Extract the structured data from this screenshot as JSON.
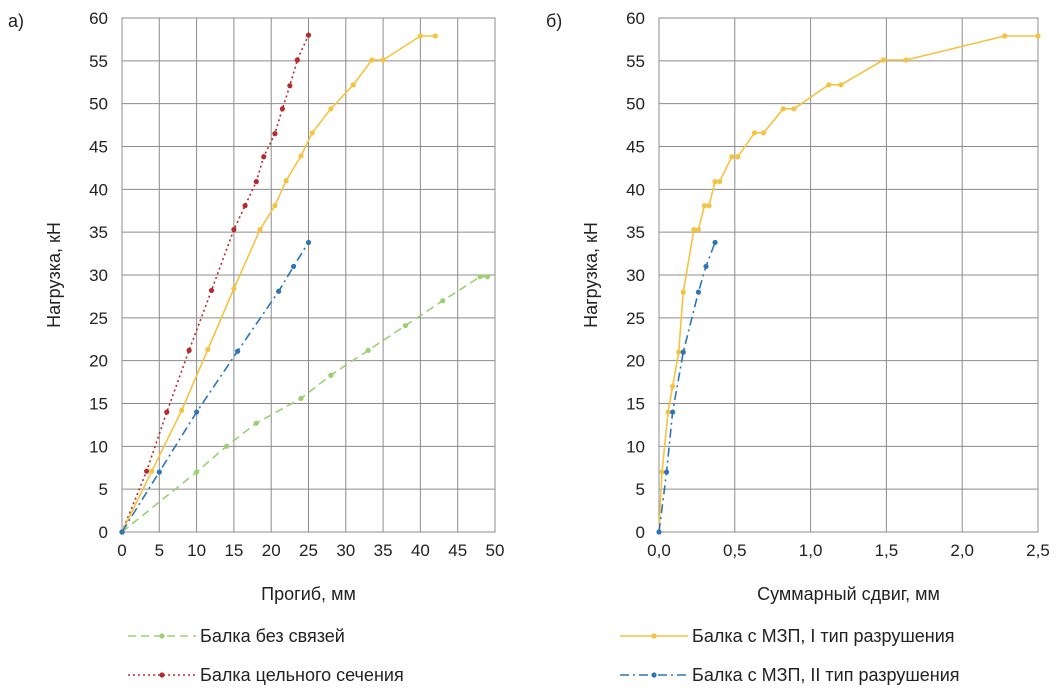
{
  "chart_data": [
    {
      "type": "line",
      "panel_label": "а)",
      "xlabel": "Прогиб, мм",
      "ylabel": "Нагрузка, кН",
      "xlim": [
        0,
        50
      ],
      "ylim": [
        0,
        60
      ],
      "x_ticks": [
        "0",
        "5",
        "10",
        "15",
        "20",
        "25",
        "30",
        "35",
        "40",
        "45",
        "50"
      ],
      "y_ticks": [
        "0",
        "5",
        "10",
        "15",
        "20",
        "25",
        "30",
        "35",
        "40",
        "45",
        "50",
        "55",
        "60"
      ],
      "grid": true,
      "legend_position": "bottom",
      "series": [
        {
          "name": "Балка без связей",
          "color": "#9bd071",
          "dash": "dash",
          "x": [
            0,
            10,
            14,
            18,
            24,
            28,
            33,
            38,
            43,
            48,
            49
          ],
          "y": [
            0,
            7,
            10,
            12.7,
            15.6,
            18.3,
            21.2,
            24.1,
            27,
            29.8,
            29.8
          ]
        },
        {
          "name": "Балка цельного сечения",
          "color": "#b52a2d",
          "dash": "dot",
          "x": [
            0,
            3.3,
            6,
            9,
            12,
            15,
            16.5,
            18,
            19,
            20.5,
            21.5,
            22.5,
            23.5,
            25
          ],
          "y": [
            0,
            7.1,
            14,
            21.2,
            28.2,
            35.3,
            38.1,
            40.9,
            43.8,
            46.5,
            49.4,
            52.1,
            55.1,
            58
          ]
        },
        {
          "name": "Балка с МЗП, I тип разрушения",
          "color": "#f5c242",
          "dash": "solid",
          "x": [
            0,
            4,
            8,
            11.5,
            15,
            18.5,
            20.5,
            22,
            24,
            25.5,
            28,
            31,
            33.5,
            35,
            40,
            42
          ],
          "y": [
            0,
            7.1,
            14.2,
            21.3,
            28.4,
            35.3,
            38.1,
            41,
            43.9,
            46.6,
            49.4,
            52.2,
            55.1,
            55.1,
            57.9,
            57.9
          ]
        },
        {
          "name": "Балка с МЗП, II тип разрушения",
          "color": "#2e75b6",
          "dash": "dashdot",
          "x": [
            0,
            5,
            10,
            15.5,
            21,
            23,
            25
          ],
          "y": [
            0,
            7,
            14,
            21.1,
            28.1,
            31,
            33.8
          ]
        }
      ]
    },
    {
      "type": "line",
      "panel_label": "б)",
      "xlabel": "Суммарный сдвиг, мм",
      "ylabel": "Нагрузка, кН",
      "xlim": [
        0,
        2.5
      ],
      "ylim": [
        0,
        60
      ],
      "x_ticks": [
        "0,0",
        "0,5",
        "1,0",
        "1,5",
        "2,0",
        "2,5"
      ],
      "y_ticks": [
        "0",
        "5",
        "10",
        "15",
        "20",
        "25",
        "30",
        "35",
        "40",
        "45",
        "50",
        "55",
        "60"
      ],
      "grid": true,
      "legend_position": "bottom",
      "series": [
        {
          "name": "Балка с МЗП, I тип разрушения",
          "color": "#f5c242",
          "dash": "solid",
          "x": [
            0,
            0.02,
            0.06,
            0.09,
            0.13,
            0.16,
            0.23,
            0.26,
            0.3,
            0.33,
            0.37,
            0.4,
            0.48,
            0.52,
            0.63,
            0.69,
            0.82,
            0.89,
            1.12,
            1.2,
            1.48,
            1.63,
            2.28,
            2.5
          ],
          "y": [
            0,
            7,
            14,
            17,
            21,
            28,
            35.3,
            35.3,
            38.1,
            38.1,
            40.9,
            40.9,
            43.8,
            43.8,
            46.6,
            46.6,
            49.4,
            49.4,
            52.2,
            52.2,
            55.1,
            55.1,
            57.9,
            57.9
          ]
        },
        {
          "name": "Балка с МЗП, II тип разрушения",
          "color": "#2e75b6",
          "dash": "dashdot",
          "x": [
            0,
            0.05,
            0.09,
            0.16,
            0.26,
            0.31,
            0.37
          ],
          "y": [
            0,
            7,
            14,
            21,
            28,
            31,
            33.8
          ]
        }
      ]
    }
  ],
  "legend": {
    "left": [
      "Балка без связей",
      "Балка цельного сечения"
    ],
    "right": [
      "Балка с МЗП, I тип разрушения",
      "Балка с МЗП, II тип разрушения"
    ]
  }
}
